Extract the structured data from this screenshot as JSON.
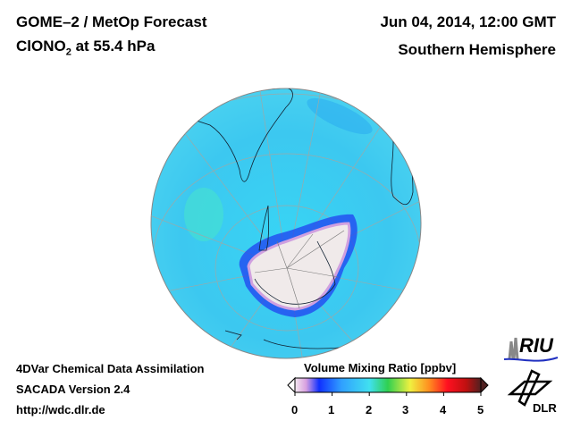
{
  "header": {
    "title": "GOME–2 / MetOp Forecast",
    "species": "ClONO",
    "species_sub": "2",
    "level": " at 55.4 hPa",
    "datetime": "Jun 04, 2014, 12:00 GMT",
    "region": "Southern Hemisphere"
  },
  "footer": {
    "line1": "4DVar Chemical Data Assimilation",
    "line2": "SACADA Version 2.4",
    "line3": "http://wdc.dlr.de"
  },
  "colorbar": {
    "title": "Volume Mixing Ratio [ppbv]",
    "ticks": [
      "0",
      "1",
      "2",
      "3",
      "4",
      "5"
    ],
    "range": [
      0,
      5
    ],
    "colors": [
      "#f4e8f0",
      "#d8a0e0",
      "#1030ff",
      "#30a0ff",
      "#40e0f0",
      "#30d050",
      "#f0f040",
      "#ff9020",
      "#ff1020",
      "#c01010",
      "#502020"
    ]
  },
  "logos": {
    "riu": "RIU",
    "dlr": "DLR"
  },
  "map": {
    "ocean_color": "#40d8f0",
    "polar_low_color": "#f0eaea"
  }
}
